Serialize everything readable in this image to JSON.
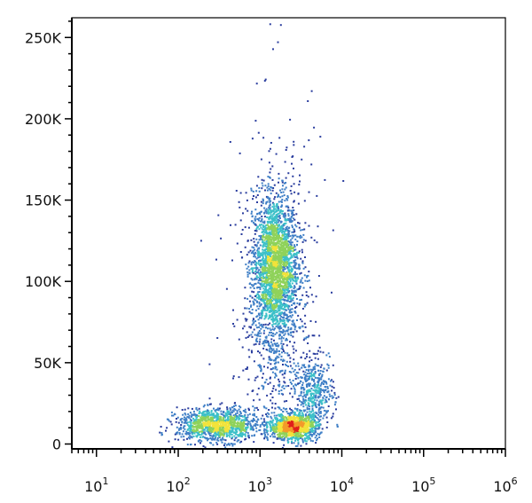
{
  "chart_data": {
    "type": "scatter",
    "style": "density-colored flow cytometry dot plot",
    "x_axis": {
      "scale": "log",
      "range": [
        5,
        1000000
      ],
      "tick_labels": [
        {
          "value": 10,
          "base": "10",
          "exp": "1"
        },
        {
          "value": 100,
          "base": "10",
          "exp": "2"
        },
        {
          "value": 1000,
          "base": "10",
          "exp": "3"
        },
        {
          "value": 10000,
          "base": "10",
          "exp": "4"
        },
        {
          "value": 100000,
          "base": "10",
          "exp": "5"
        },
        {
          "value": 1000000,
          "base": "10",
          "exp": "6"
        }
      ]
    },
    "y_axis": {
      "scale": "linear",
      "range": [
        -3000,
        262144
      ],
      "tick_labels": [
        {
          "value": 0,
          "label": "0"
        },
        {
          "value": 50000,
          "label": "50K"
        },
        {
          "value": 100000,
          "label": "100K"
        },
        {
          "value": 150000,
          "label": "150K"
        },
        {
          "value": 200000,
          "label": "200K"
        },
        {
          "value": 250000,
          "label": "250K"
        }
      ]
    },
    "grid": false,
    "density_colors": [
      "#2a3d9e",
      "#3f7fc6",
      "#3cc0c8",
      "#8fd25a",
      "#f2e33a",
      "#f39a2a",
      "#e0201b"
    ],
    "populations": [
      {
        "x_center": 1500,
        "x_log_sd": 0.14,
        "y_center": 110000,
        "y_sd": 22000,
        "count": 2600
      },
      {
        "x_center": 300,
        "x_log_sd": 0.25,
        "y_center": 12000,
        "y_sd": 5000,
        "count": 1200
      },
      {
        "x_center": 2500,
        "x_log_sd": 0.15,
        "y_center": 11000,
        "y_sd": 4000,
        "count": 1100
      },
      {
        "x_center": 4500,
        "x_log_sd": 0.12,
        "y_center": 32000,
        "y_sd": 10000,
        "count": 450
      },
      {
        "x_center": 1600,
        "x_log_sd": 0.2,
        "y_center": 60000,
        "y_sd": 28000,
        "count": 350
      },
      {
        "x_center": 1500,
        "x_log_sd": 0.3,
        "y_center": 100000,
        "y_sd": 70000,
        "count": 250
      }
    ]
  }
}
